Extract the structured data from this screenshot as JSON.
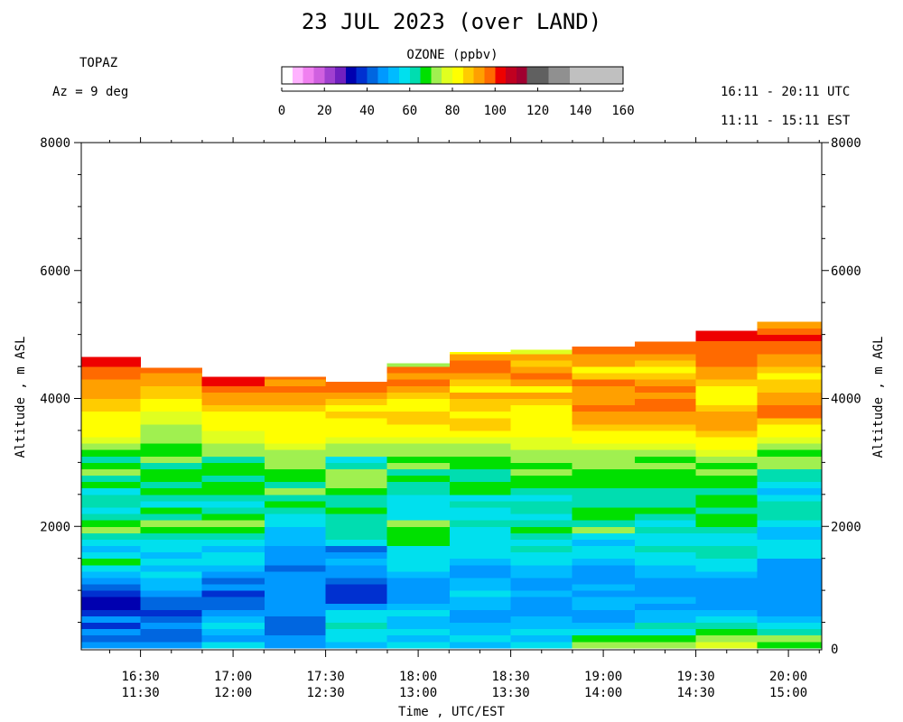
{
  "title": "23 JUL 2023 (over LAND)",
  "instrument": "TOPAZ",
  "azimuth": "Az =   9 deg",
  "time_range_utc": "16:11 - 20:11 UTC",
  "time_range_est": "11:11 - 15:11 EST",
  "colorbar": {
    "title": "OZONE (ppbv)",
    "tick_labels": [
      "0",
      "20",
      "40",
      "60",
      "80",
      "100",
      "120",
      "140",
      "160"
    ],
    "bins": [
      {
        "from": 0,
        "to": 5,
        "color": "#ffffff"
      },
      {
        "from": 5,
        "to": 10,
        "color": "#ffb3ff"
      },
      {
        "from": 10,
        "to": 15,
        "color": "#f080f0"
      },
      {
        "from": 15,
        "to": 20,
        "color": "#d060e0"
      },
      {
        "from": 20,
        "to": 25,
        "color": "#a040d0"
      },
      {
        "from": 25,
        "to": 30,
        "color": "#7020c0"
      },
      {
        "from": 30,
        "to": 35,
        "color": "#0000b0"
      },
      {
        "from": 35,
        "to": 40,
        "color": "#0030d0"
      },
      {
        "from": 40,
        "to": 45,
        "color": "#0066e0"
      },
      {
        "from": 45,
        "to": 50,
        "color": "#0099ff"
      },
      {
        "from": 50,
        "to": 55,
        "color": "#00bbff"
      },
      {
        "from": 55,
        "to": 60,
        "color": "#00e0ee"
      },
      {
        "from": 60,
        "to": 65,
        "color": "#00ddb0"
      },
      {
        "from": 65,
        "to": 70,
        "color": "#00e000"
      },
      {
        "from": 70,
        "to": 75,
        "color": "#a0f050"
      },
      {
        "from": 75,
        "to": 80,
        "color": "#e0ff20"
      },
      {
        "from": 80,
        "to": 85,
        "color": "#ffff00"
      },
      {
        "from": 85,
        "to": 90,
        "color": "#ffcc00"
      },
      {
        "from": 90,
        "to": 95,
        "color": "#ffa000"
      },
      {
        "from": 95,
        "to": 100,
        "color": "#ff6a00"
      },
      {
        "from": 100,
        "to": 105,
        "color": "#ee0000"
      },
      {
        "from": 105,
        "to": 110,
        "color": "#c00020"
      },
      {
        "from": 110,
        "to": 115,
        "color": "#a00030"
      },
      {
        "from": 115,
        "to": 125,
        "color": "#606060"
      },
      {
        "from": 125,
        "to": 135,
        "color": "#909090"
      },
      {
        "from": 135,
        "to": 160,
        "color": "#c0c0c0"
      }
    ]
  },
  "chart_data": {
    "type": "heatmap",
    "title": "23 JUL 2023 (over LAND)",
    "xlabel": "Time , UTC/EST",
    "ylabel_left": "Altitude , m ASL",
    "ylabel_right": "Altitude , m AGL",
    "x_range_utc_hours": [
      16.18,
      20.18
    ],
    "ylim": [
      0,
      8000
    ],
    "x_ticks": [
      {
        "utc": "16:30",
        "est": "11:30",
        "hour": 16.5
      },
      {
        "utc": "17:00",
        "est": "12:00",
        "hour": 17.0
      },
      {
        "utc": "17:30",
        "est": "12:30",
        "hour": 17.5
      },
      {
        "utc": "18:00",
        "est": "13:00",
        "hour": 18.0
      },
      {
        "utc": "18:30",
        "est": "13:30",
        "hour": 18.5
      },
      {
        "utc": "19:00",
        "est": "14:00",
        "hour": 19.0
      },
      {
        "utc": "19:30",
        "est": "14:30",
        "hour": 19.5
      },
      {
        "utc": "20:00",
        "est": "15:00",
        "hour": 20.0
      }
    ],
    "y_ticks_left": [
      "2000",
      "4000",
      "6000",
      "8000"
    ],
    "y_ticks_right": [
      "0",
      "2000",
      "4000",
      "6000",
      "8000"
    ],
    "bin_edges_m": [
      100,
      200,
      300,
      400,
      500,
      600,
      700,
      800,
      900,
      1000,
      1100,
      1200,
      1300,
      1400,
      1500,
      1600,
      1700,
      1800,
      1900,
      2000,
      2100,
      2200,
      2300,
      2400,
      2500,
      2600,
      2700,
      2800,
      2900,
      3000,
      3100,
      3200,
      3300,
      3400,
      3500,
      3600,
      3700,
      3800,
      3900,
      4000,
      4100,
      4200,
      4300,
      4400,
      4500,
      4600,
      4700,
      4800,
      4900,
      5000,
      5100,
      5200
    ],
    "columns": [
      {
        "t_start": 16.18,
        "t_end": 16.5,
        "top_m": 4650,
        "ozone_ppbv": [
          45,
          40,
          45,
          35,
          45,
          35,
          32,
          32,
          38,
          42,
          48,
          52,
          57,
          67,
          57,
          52,
          55,
          62,
          72,
          67,
          62,
          57,
          60,
          62,
          57,
          67,
          62,
          70,
          67,
          60,
          67,
          72,
          75,
          80,
          82,
          84,
          84,
          87,
          87,
          90,
          90,
          92,
          95,
          97,
          101,
          102,
          98,
          97
        ]
      },
      {
        "t_start": 16.5,
        "t_end": 16.83,
        "top_m": 4480,
        "ozone_ppbv": [
          47,
          42,
          40,
          45,
          42,
          38,
          40,
          40,
          45,
          50,
          52,
          55,
          52,
          57,
          50,
          55,
          57,
          62,
          67,
          72,
          62,
          67,
          57,
          62,
          67,
          62,
          67,
          67,
          62,
          72,
          67,
          67,
          72,
          70,
          70,
          75,
          75,
          82,
          84,
          87,
          88,
          90,
          92,
          95,
          97,
          100
        ]
      },
      {
        "t_start": 16.83,
        "t_end": 17.17,
        "top_m": 4340,
        "ozone_ppbv": [
          57,
          47,
          50,
          55,
          50,
          45,
          42,
          40,
          38,
          45,
          42,
          47,
          52,
          57,
          55,
          52,
          57,
          62,
          67,
          72,
          67,
          62,
          57,
          62,
          67,
          67,
          62,
          67,
          67,
          62,
          70,
          72,
          75,
          75,
          80,
          82,
          84,
          87,
          90,
          92,
          95,
          100,
          102,
          97
        ]
      },
      {
        "t_start": 17.17,
        "t_end": 17.5,
        "top_m": 4340,
        "ozone_ppbv": [
          47,
          45,
          42,
          40,
          42,
          45,
          47,
          45,
          45,
          45,
          47,
          45,
          42,
          45,
          45,
          47,
          50,
          50,
          52,
          55,
          55,
          62,
          67,
          62,
          72,
          62,
          67,
          67,
          72,
          72,
          72,
          75,
          80,
          82,
          84,
          82,
          84,
          87,
          90,
          92,
          95,
          93,
          97,
          100
        ]
      },
      {
        "t_start": 17.5,
        "t_end": 17.83,
        "top_m": 4260,
        "ozone_ppbv": [
          50,
          55,
          57,
          62,
          57,
          55,
          45,
          38,
          35,
          38,
          42,
          45,
          47,
          52,
          45,
          42,
          57,
          62,
          62,
          62,
          62,
          67,
          62,
          62,
          67,
          72,
          72,
          72,
          62,
          57,
          70,
          72,
          75,
          80,
          82,
          84,
          86,
          84,
          88,
          92,
          95,
          97,
          98,
          100
        ]
      },
      {
        "t_start": 17.83,
        "t_end": 18.17,
        "top_m": 4550,
        "ozone_ppbv": [
          55,
          50,
          57,
          52,
          50,
          55,
          50,
          45,
          47,
          45,
          47,
          52,
          55,
          55,
          57,
          57,
          67,
          67,
          67,
          72,
          57,
          55,
          57,
          55,
          62,
          62,
          67,
          62,
          72,
          67,
          72,
          72,
          75,
          80,
          82,
          87,
          85,
          82,
          84,
          88,
          92,
          95,
          90,
          97,
          72,
          82
        ]
      },
      {
        "t_start": 18.17,
        "t_end": 18.5,
        "top_m": 4730,
        "ozone_ppbv": [
          52,
          57,
          50,
          52,
          47,
          47,
          50,
          52,
          55,
          50,
          52,
          47,
          45,
          50,
          55,
          57,
          57,
          55,
          57,
          62,
          57,
          57,
          62,
          57,
          67,
          67,
          62,
          62,
          67,
          67,
          72,
          72,
          75,
          84,
          87,
          87,
          82,
          87,
          87,
          92,
          84,
          88,
          92,
          95,
          97,
          92,
          84,
          90
        ]
      },
      {
        "t_start": 18.5,
        "t_end": 18.83,
        "top_m": 4760,
        "ozone_ppbv": [
          55,
          52,
          57,
          50,
          52,
          47,
          47,
          45,
          50,
          45,
          47,
          50,
          52,
          55,
          57,
          62,
          57,
          62,
          67,
          62,
          57,
          62,
          62,
          57,
          62,
          67,
          67,
          72,
          67,
          72,
          72,
          75,
          77,
          80,
          80,
          82,
          82,
          84,
          88,
          92,
          84,
          92,
          95,
          90,
          86,
          92,
          75,
          84
        ]
      },
      {
        "t_start": 18.83,
        "t_end": 19.17,
        "top_m": 4810,
        "ozone_ppbv": [
          72,
          67,
          57,
          50,
          47,
          45,
          50,
          52,
          47,
          50,
          45,
          45,
          47,
          50,
          55,
          57,
          52,
          55,
          72,
          62,
          67,
          67,
          62,
          62,
          62,
          67,
          67,
          67,
          70,
          72,
          72,
          75,
          82,
          84,
          88,
          90,
          92,
          95,
          93,
          90,
          92,
          95,
          88,
          84,
          90,
          92,
          97,
          99
        ]
      },
      {
        "t_start": 19.17,
        "t_end": 19.5,
        "top_m": 4890,
        "ozone_ppbv": [
          72,
          67,
          57,
          62,
          52,
          50,
          47,
          50,
          47,
          45,
          47,
          50,
          52,
          55,
          57,
          62,
          57,
          55,
          62,
          57,
          62,
          67,
          62,
          62,
          62,
          67,
          67,
          67,
          72,
          67,
          72,
          75,
          80,
          84,
          88,
          90,
          92,
          95,
          95,
          92,
          95,
          90,
          88,
          84,
          88,
          92,
          95,
          97,
          99
        ]
      },
      {
        "t_start": 19.5,
        "t_end": 19.83,
        "top_m": 5060,
        "ozone_ppbv": [
          75,
          72,
          67,
          62,
          57,
          50,
          47,
          47,
          45,
          45,
          47,
          52,
          55,
          57,
          62,
          62,
          57,
          57,
          62,
          67,
          67,
          62,
          67,
          67,
          62,
          67,
          67,
          72,
          67,
          72,
          75,
          82,
          84,
          88,
          90,
          92,
          90,
          86,
          84,
          82,
          84,
          88,
          90,
          92,
          95,
          97,
          99,
          97,
          100,
          101,
          98
        ]
      },
      {
        "t_start": 19.83,
        "t_end": 20.18,
        "top_m": 5200,
        "ozone_ppbv": [
          67,
          72,
          62,
          57,
          52,
          47,
          47,
          47,
          47,
          47,
          47,
          47,
          47,
          47,
          55,
          57,
          57,
          52,
          52,
          55,
          62,
          62,
          62,
          57,
          52,
          57,
          62,
          62,
          72,
          72,
          67,
          72,
          75,
          80,
          84,
          88,
          97,
          95,
          92,
          90,
          88,
          85,
          84,
          87,
          90,
          92,
          95,
          97,
          100,
          99,
          90,
          86
        ]
      }
    ]
  }
}
